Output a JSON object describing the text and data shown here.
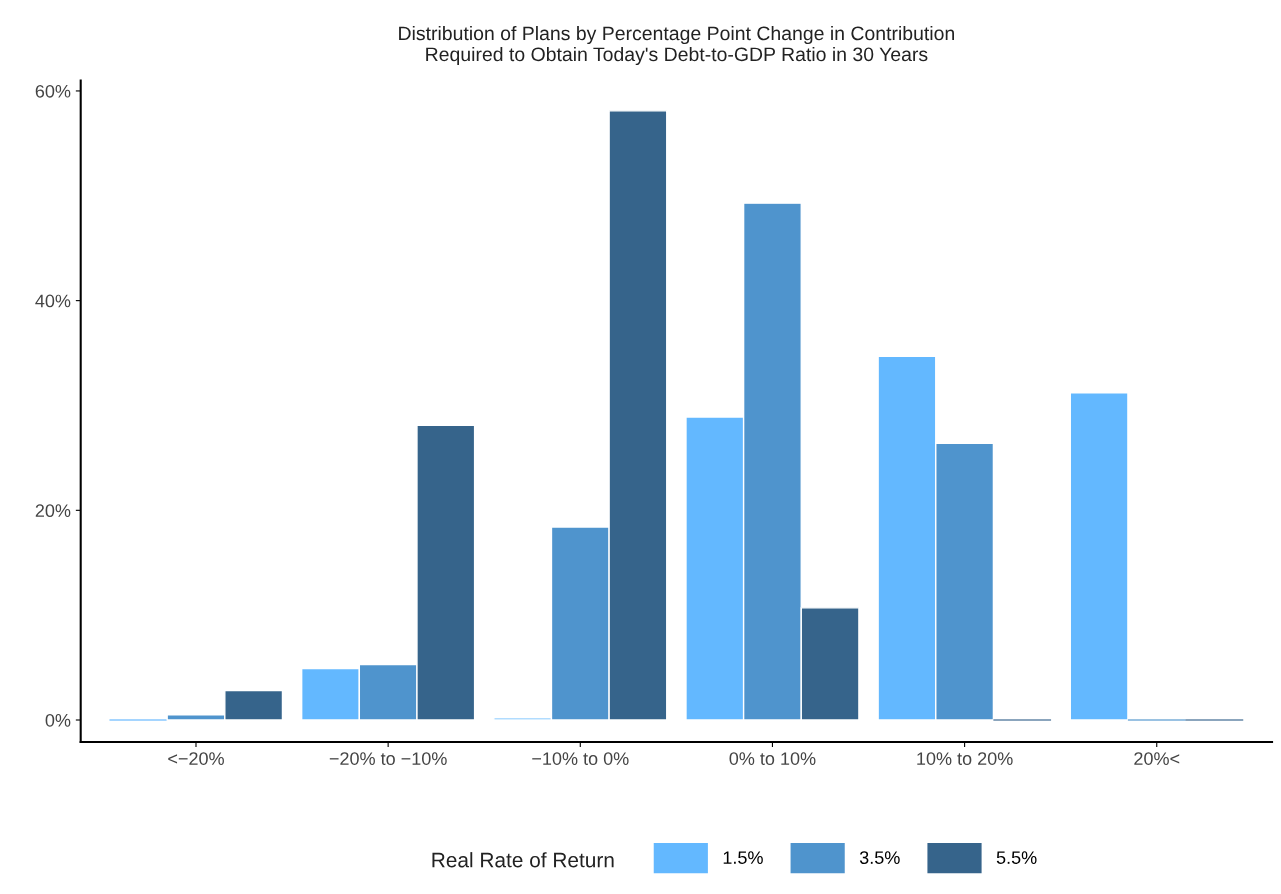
{
  "chart_data": {
    "type": "bar",
    "title": "Distribution of Plans by Percentage Point Change in Contribution\nRequired to Obtain Today's Debt-to-GDP Ratio in 30 Years",
    "categories": [
      "<−20%",
      "−20% to −10%",
      "−10% to 0%",
      "0% to 10%",
      "10% to 20%",
      "20%<"
    ],
    "series": [
      {
        "name": "1.5%",
        "color": "#63b8ff",
        "values": [
          0,
          4.9,
          0.2,
          28.9,
          34.7,
          31.2
        ]
      },
      {
        "name": "3.5%",
        "color": "#4f94cd",
        "values": [
          0.5,
          5.3,
          18.4,
          49.3,
          26.4,
          0
        ]
      },
      {
        "name": "5.5%",
        "color": "#36648b",
        "values": [
          2.8,
          28.1,
          58.1,
          10.7,
          0,
          0
        ]
      }
    ],
    "ylim": [
      -2.1,
      61
    ],
    "yticks": [
      {
        "value": 0,
        "label": "0%"
      },
      {
        "value": 20,
        "label": "20%"
      },
      {
        "value": 40,
        "label": "40%"
      },
      {
        "value": 60,
        "label": "60%"
      }
    ],
    "legend_title": "Real Rate of Return",
    "legend": "bottom",
    "grid": false
  }
}
